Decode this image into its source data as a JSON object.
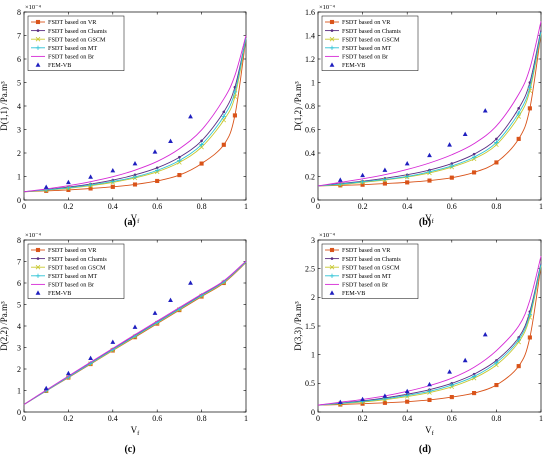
{
  "figure": {
    "colors": {
      "VR": "#d95319",
      "Chamis": "#5a2d82",
      "GSCM": "#c8c832",
      "MT": "#2ec4d6",
      "Br": "#d62ad6",
      "FEM": "#1f1fbf"
    }
  },
  "chart_data": [
    {
      "type": "line",
      "panel_label": "(a)",
      "xlabel": "Vf",
      "ylabel": "D(1,1) /Pa.m³",
      "exponent": "×10⁻⁴",
      "xlim": [
        0,
        1
      ],
      "ylim": [
        0,
        8
      ],
      "xticks": [
        "0",
        "0.2",
        "0.4",
        "0.6",
        "0.8",
        "1"
      ],
      "yticks": [
        "0",
        "1",
        "2",
        "3",
        "4",
        "5",
        "6",
        "7",
        "8"
      ],
      "legend_position": "top-left",
      "x": [
        0,
        0.1,
        0.2,
        0.3,
        0.4,
        0.5,
        0.6,
        0.7,
        0.8,
        0.9,
        0.95,
        1.0
      ],
      "series": [
        {
          "name": "FSDT based on VR",
          "key": "VR",
          "marker": "square",
          "values": [
            0.35,
            0.39,
            0.43,
            0.49,
            0.56,
            0.66,
            0.81,
            1.06,
            1.55,
            2.35,
            3.6,
            6.9
          ]
        },
        {
          "name": "FSDT based on Chamis",
          "key": "Chamis",
          "marker": "dot",
          "values": [
            0.35,
            0.44,
            0.55,
            0.68,
            0.85,
            1.07,
            1.37,
            1.82,
            2.52,
            3.75,
            4.8,
            6.9
          ]
        },
        {
          "name": "FSDT based on GSCM",
          "key": "GSCM",
          "marker": "cross",
          "values": [
            0.35,
            0.42,
            0.5,
            0.61,
            0.75,
            0.94,
            1.2,
            1.6,
            2.25,
            3.4,
            4.4,
            6.9
          ]
        },
        {
          "name": "FSDT based on MT",
          "key": "MT",
          "marker": "plus",
          "values": [
            0.35,
            0.43,
            0.52,
            0.64,
            0.79,
            0.98,
            1.26,
            1.68,
            2.36,
            3.56,
            4.6,
            6.9
          ]
        },
        {
          "name": "FSDT based on Br",
          "key": "Br",
          "marker": "none",
          "values": [
            0.35,
            0.47,
            0.61,
            0.78,
            0.99,
            1.27,
            1.64,
            2.18,
            2.98,
            4.3,
            5.3,
            7.0
          ]
        }
      ],
      "scatter": {
        "name": "FEM-VB",
        "key": "FEM",
        "x": [
          0.1,
          0.2,
          0.3,
          0.4,
          0.5,
          0.59,
          0.66,
          0.75
        ],
        "y": [
          0.55,
          0.75,
          0.98,
          1.25,
          1.55,
          2.05,
          2.5,
          3.55
        ]
      }
    },
    {
      "type": "line",
      "panel_label": "(b)",
      "xlabel": "Vf",
      "ylabel": "D(1,2) /Pa.m³",
      "exponent": "×10⁻⁴",
      "xlim": [
        0,
        1
      ],
      "ylim": [
        0,
        1.6
      ],
      "xticks": [
        "0",
        "0.2",
        "0.4",
        "0.6",
        "0.8",
        "1"
      ],
      "yticks": [
        "0",
        "0.2",
        "0.4",
        "0.6",
        "0.8",
        "1",
        "1.2",
        "1.4",
        "1.6"
      ],
      "legend_position": "top-left",
      "x": [
        0,
        0.1,
        0.2,
        0.3,
        0.4,
        0.5,
        0.6,
        0.7,
        0.8,
        0.9,
        0.95,
        1.0
      ],
      "series": [
        {
          "name": "FSDT based on VR",
          "key": "VR",
          "marker": "square",
          "values": [
            0.12,
            0.125,
            0.13,
            0.14,
            0.15,
            0.165,
            0.19,
            0.235,
            0.32,
            0.52,
            0.78,
            1.42
          ]
        },
        {
          "name": "FSDT based on Chamis",
          "key": "Chamis",
          "marker": "dot",
          "values": [
            0.12,
            0.14,
            0.16,
            0.185,
            0.215,
            0.255,
            0.31,
            0.39,
            0.52,
            0.78,
            1.0,
            1.45
          ]
        },
        {
          "name": "FSDT based on GSCM",
          "key": "GSCM",
          "marker": "cross",
          "values": [
            0.12,
            0.13,
            0.15,
            0.17,
            0.195,
            0.23,
            0.28,
            0.35,
            0.47,
            0.71,
            0.93,
            1.42
          ]
        },
        {
          "name": "FSDT based on MT",
          "key": "MT",
          "marker": "plus",
          "values": [
            0.12,
            0.135,
            0.155,
            0.175,
            0.2,
            0.24,
            0.29,
            0.365,
            0.49,
            0.74,
            0.96,
            1.43
          ]
        },
        {
          "name": "FSDT based on Br",
          "key": "Br",
          "marker": "none",
          "values": [
            0.12,
            0.15,
            0.18,
            0.215,
            0.26,
            0.315,
            0.385,
            0.48,
            0.63,
            0.9,
            1.12,
            1.52
          ]
        }
      ],
      "scatter": {
        "name": "FEM-VB",
        "key": "FEM",
        "x": [
          0.1,
          0.2,
          0.3,
          0.4,
          0.5,
          0.59,
          0.66,
          0.75
        ],
        "y": [
          0.17,
          0.21,
          0.255,
          0.31,
          0.38,
          0.47,
          0.56,
          0.76
        ]
      }
    },
    {
      "type": "line",
      "panel_label": "(c)",
      "xlabel": "Vf",
      "ylabel": "D(2,2) /Pa.m³",
      "exponent": "×10⁻⁴",
      "xlim": [
        0,
        1
      ],
      "ylim": [
        0,
        8
      ],
      "xticks": [
        "0",
        "0.2",
        "0.4",
        "0.6",
        "0.8",
        "1"
      ],
      "yticks": [
        "0",
        "1",
        "2",
        "3",
        "4",
        "5",
        "6",
        "7",
        "8"
      ],
      "legend_position": "top-left",
      "x": [
        0,
        0.1,
        0.2,
        0.3,
        0.4,
        0.5,
        0.6,
        0.7,
        0.8,
        0.9,
        1.0
      ],
      "series": [
        {
          "name": "FSDT based on VR",
          "key": "VR",
          "marker": "square",
          "values": [
            0.35,
            0.98,
            1.6,
            2.23,
            2.86,
            3.48,
            4.11,
            4.74,
            5.37,
            6.0,
            6.95
          ]
        },
        {
          "name": "FSDT based on Chamis",
          "key": "Chamis",
          "marker": "dot",
          "values": [
            0.35,
            1.0,
            1.64,
            2.28,
            2.92,
            3.55,
            4.18,
            4.81,
            5.44,
            6.07,
            7.0
          ]
        },
        {
          "name": "FSDT based on GSCM",
          "key": "GSCM",
          "marker": "cross",
          "values": [
            0.35,
            0.99,
            1.62,
            2.25,
            2.88,
            3.51,
            4.14,
            4.77,
            5.4,
            6.03,
            6.97
          ]
        },
        {
          "name": "FSDT based on MT",
          "key": "MT",
          "marker": "plus",
          "values": [
            0.35,
            0.99,
            1.63,
            2.26,
            2.9,
            3.53,
            4.16,
            4.79,
            5.42,
            6.05,
            6.98
          ]
        },
        {
          "name": "FSDT based on Br",
          "key": "Br",
          "marker": "none",
          "values": [
            0.35,
            1.02,
            1.67,
            2.32,
            2.96,
            3.6,
            4.23,
            4.86,
            5.48,
            6.1,
            7.02
          ]
        }
      ],
      "scatter": {
        "name": "FEM-VB",
        "key": "FEM",
        "x": [
          0.1,
          0.2,
          0.3,
          0.4,
          0.5,
          0.59,
          0.66,
          0.75
        ],
        "y": [
          1.1,
          1.8,
          2.5,
          3.25,
          3.95,
          4.6,
          5.2,
          6.0
        ]
      }
    },
    {
      "type": "line",
      "panel_label": "(d)",
      "xlabel": "Vf",
      "ylabel": "D(3,3) /Pa.m³",
      "exponent": "×10⁻⁴",
      "xlim": [
        0,
        1
      ],
      "ylim": [
        0,
        3
      ],
      "xticks": [
        "0",
        "0.2",
        "0.4",
        "0.6",
        "0.8",
        "1"
      ],
      "yticks": [
        "0",
        "0.5",
        "1",
        "1.5",
        "2",
        "2.5",
        "3"
      ],
      "legend_position": "top-left",
      "x": [
        0,
        0.1,
        0.2,
        0.3,
        0.4,
        0.5,
        0.6,
        0.7,
        0.8,
        0.9,
        0.95,
        1.0
      ],
      "series": [
        {
          "name": "FSDT based on VR",
          "key": "VR",
          "marker": "square",
          "values": [
            0.12,
            0.13,
            0.145,
            0.16,
            0.18,
            0.21,
            0.26,
            0.33,
            0.47,
            0.8,
            1.3,
            2.55
          ]
        },
        {
          "name": "FSDT based on Chamis",
          "key": "Chamis",
          "marker": "dot",
          "values": [
            0.12,
            0.155,
            0.195,
            0.245,
            0.31,
            0.39,
            0.5,
            0.66,
            0.9,
            1.3,
            1.75,
            2.6
          ]
        },
        {
          "name": "FSDT based on GSCM",
          "key": "GSCM",
          "marker": "cross",
          "values": [
            0.12,
            0.145,
            0.175,
            0.215,
            0.27,
            0.34,
            0.44,
            0.59,
            0.82,
            1.22,
            1.65,
            2.55
          ]
        },
        {
          "name": "FSDT based on MT",
          "key": "MT",
          "marker": "plus",
          "values": [
            0.12,
            0.15,
            0.185,
            0.23,
            0.29,
            0.36,
            0.47,
            0.62,
            0.86,
            1.26,
            1.7,
            2.57
          ]
        },
        {
          "name": "FSDT based on Br",
          "key": "Br",
          "marker": "none",
          "values": [
            0.12,
            0.17,
            0.22,
            0.28,
            0.36,
            0.46,
            0.59,
            0.78,
            1.07,
            1.5,
            1.95,
            2.72
          ]
        }
      ],
      "scatter": {
        "name": "FEM-VB",
        "key": "FEM",
        "x": [
          0.1,
          0.2,
          0.3,
          0.4,
          0.5,
          0.59,
          0.66,
          0.75
        ],
        "y": [
          0.17,
          0.22,
          0.28,
          0.36,
          0.48,
          0.7,
          0.9,
          1.35
        ]
      }
    }
  ]
}
